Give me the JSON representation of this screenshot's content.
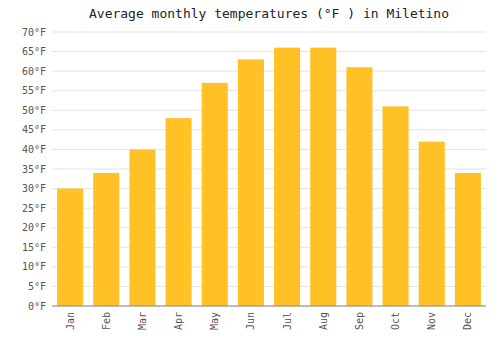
{
  "chart_data": {
    "type": "bar",
    "title": "Average monthly temperatures (°F ) in Miletino",
    "categories": [
      "Jan",
      "Feb",
      "Mar",
      "Apr",
      "May",
      "Jun",
      "Jul",
      "Aug",
      "Sep",
      "Oct",
      "Nov",
      "Dec"
    ],
    "values": [
      30,
      34,
      40,
      48,
      57,
      63,
      66,
      66,
      61,
      51,
      42,
      34
    ],
    "color": "#FFC125",
    "ylim": [
      0,
      70
    ],
    "yticks": [
      {
        "value": 0,
        "label": "0°F"
      },
      {
        "value": 5,
        "label": "5°F"
      },
      {
        "value": 10,
        "label": "10°F"
      },
      {
        "value": 15,
        "label": "15°F"
      },
      {
        "value": 20,
        "label": "20°F"
      },
      {
        "value": 25,
        "label": "25°F"
      },
      {
        "value": 30,
        "label": "30°F"
      },
      {
        "value": 35,
        "label": "35°F"
      },
      {
        "value": 40,
        "label": "40°F"
      },
      {
        "value": 45,
        "label": "45°F"
      },
      {
        "value": 50,
        "label": "50°F"
      },
      {
        "value": 55,
        "label": "55°F"
      },
      {
        "value": 60,
        "label": "60°F"
      },
      {
        "value": 65,
        "label": "65°F"
      },
      {
        "value": 70,
        "label": "70°F"
      }
    ],
    "grid": true
  }
}
